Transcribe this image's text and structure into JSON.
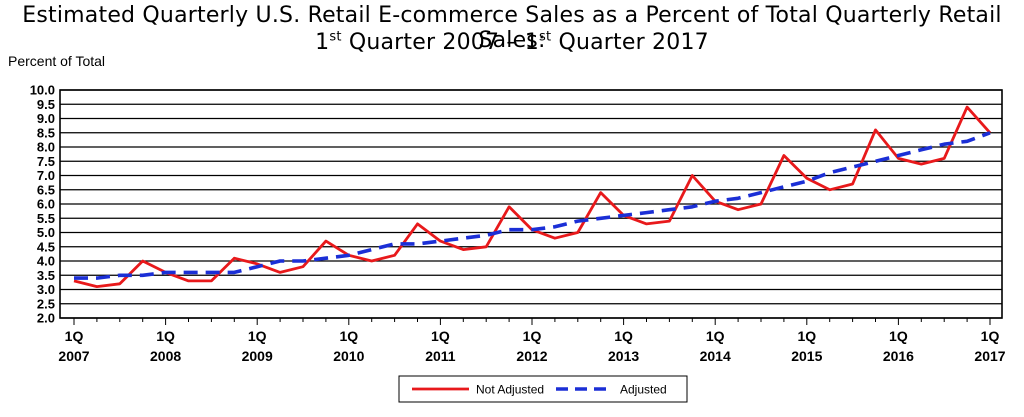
{
  "header": {
    "title_line1": "Estimated Quarterly U.S. Retail E-commerce Sales as a Percent of Total Quarterly Retail Sales:",
    "title_line2_a": "1",
    "title_line2_sup_a": "st",
    "title_line2_b": " Quarter 2007 – 1",
    "title_line2_sup_b": "st",
    "title_line2_c": "  Quarter 2017"
  },
  "chart_data": {
    "type": "line",
    "title": "Estimated Quarterly U.S. Retail E-commerce Sales as a Percent of Total Quarterly Retail Sales: 1st Quarter 2007 – 1st Quarter 2017",
    "ylabel": "Percent of Total",
    "xlabel": "",
    "ylim": [
      2.0,
      10.0
    ],
    "yticks": [
      "2.0",
      "2.5",
      "3.0",
      "3.5",
      "4.0",
      "4.5",
      "5.0",
      "5.5",
      "6.0",
      "6.5",
      "7.0",
      "7.5",
      "8.0",
      "8.5",
      "9.0",
      "9.5",
      "10.0"
    ],
    "xticks": [
      {
        "q": "1Q",
        "year": "2007"
      },
      {
        "q": "1Q",
        "year": "2008"
      },
      {
        "q": "1Q",
        "year": "2009"
      },
      {
        "q": "1Q",
        "year": "2010"
      },
      {
        "q": "1Q",
        "year": "2011"
      },
      {
        "q": "1Q",
        "year": "2012"
      },
      {
        "q": "1Q",
        "year": "2013"
      },
      {
        "q": "1Q",
        "year": "2014"
      },
      {
        "q": "1Q",
        "year": "2015"
      },
      {
        "q": "1Q",
        "year": "2016"
      },
      {
        "q": "1Q",
        "year": "2017"
      }
    ],
    "grid": "horizontal",
    "legend_position": "bottom-center",
    "series": [
      {
        "name": "Not Adjusted",
        "color": "#e8191b",
        "style": "solid",
        "values": [
          3.3,
          3.1,
          3.2,
          4.0,
          3.6,
          3.3,
          3.3,
          4.1,
          3.9,
          3.6,
          3.8,
          4.7,
          4.2,
          4.0,
          4.2,
          5.3,
          4.7,
          4.4,
          4.5,
          5.9,
          5.1,
          4.8,
          5.0,
          6.4,
          5.6,
          5.3,
          5.4,
          7.0,
          6.1,
          5.8,
          6.0,
          7.7,
          6.9,
          6.5,
          6.7,
          8.6,
          7.6,
          7.4,
          7.6,
          9.4,
          8.5
        ]
      },
      {
        "name": "Adjusted",
        "color": "#1b2fd6",
        "style": "dashed",
        "values": [
          3.4,
          3.4,
          3.5,
          3.5,
          3.6,
          3.6,
          3.6,
          3.6,
          3.8,
          4.0,
          4.0,
          4.1,
          4.2,
          4.4,
          4.6,
          4.6,
          4.7,
          4.8,
          4.9,
          5.1,
          5.1,
          5.2,
          5.4,
          5.5,
          5.6,
          5.7,
          5.8,
          5.9,
          6.1,
          6.2,
          6.4,
          6.6,
          6.8,
          7.1,
          7.3,
          7.5,
          7.7,
          7.9,
          8.1,
          8.2,
          8.5
        ]
      }
    ]
  }
}
